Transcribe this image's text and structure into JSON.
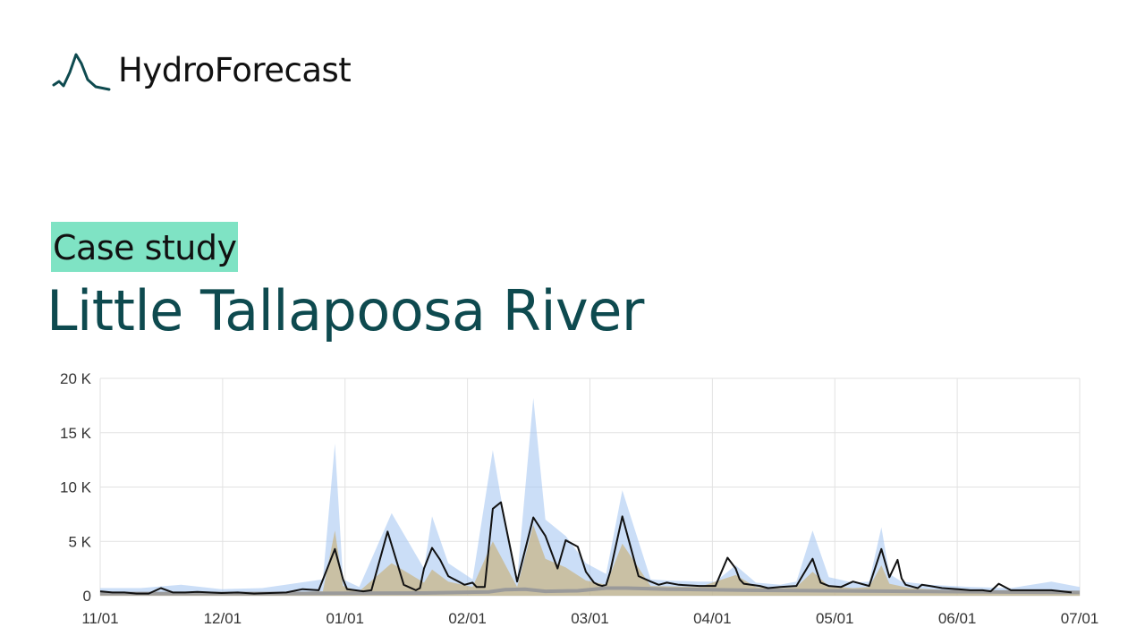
{
  "brand": {
    "name": "HydroForecast",
    "logo_icon": "hydrograph-peak-icon",
    "logo_color": "#0e4a4f"
  },
  "badge": {
    "label": "Case study",
    "color": "#7fe3c4"
  },
  "title": "Little Tallapoosa River",
  "colors": {
    "observed": "#111111",
    "band_outer": "#a9c8f2",
    "band_mid": "#c9a860",
    "baseline": "#9a9a9a",
    "grid": "#e2e2e2"
  },
  "chart_data": {
    "type": "line",
    "title": "",
    "xlabel": "",
    "ylabel": "",
    "x_ticks": [
      "11/01",
      "12/01",
      "01/01",
      "02/01",
      "03/01",
      "04/01",
      "05/01",
      "06/01",
      "07/01"
    ],
    "y_ticks": [
      "20 K",
      "15 K",
      "10 K",
      "5 K",
      "0"
    ],
    "xlim": [
      0,
      242
    ],
    "ylim": [
      0,
      20000
    ],
    "grid": true,
    "legend": "none",
    "series": [
      {
        "role": "observed",
        "x": [
          0,
          3,
          6,
          9,
          12,
          15,
          18,
          21,
          24,
          27,
          30,
          34,
          38,
          42,
          46,
          50,
          54,
          58,
          60,
          61,
          63,
          65,
          67,
          71,
          75,
          78,
          79,
          80,
          82,
          84,
          86,
          90,
          92,
          93,
          95,
          97,
          99,
          103,
          107,
          110,
          113,
          115,
          118,
          120,
          122,
          123,
          124,
          125,
          126,
          129,
          133,
          136,
          138,
          140,
          143,
          148,
          152,
          155,
          157,
          158,
          159,
          163,
          165,
          168,
          172,
          176,
          178,
          180,
          183,
          186,
          190,
          193,
          195,
          197,
          198,
          199,
          200,
          201,
          202,
          203,
          205,
          208,
          212,
          215,
          218,
          220,
          222,
          225,
          230,
          235,
          240
        ],
        "y": [
          400,
          300,
          300,
          200,
          200,
          700,
          300,
          300,
          350,
          300,
          250,
          300,
          200,
          250,
          300,
          600,
          500,
          4300,
          1500,
          600,
          500,
          400,
          500,
          5900,
          1000,
          500,
          700,
          2500,
          4400,
          3300,
          1800,
          1000,
          1200,
          800,
          800,
          8000,
          8600,
          1300,
          7200,
          5500,
          2500,
          5100,
          4500,
          2200,
          1200,
          1000,
          900,
          1000,
          2200,
          7300,
          1800,
          1300,
          1000,
          1200,
          1000,
          900,
          900,
          3500,
          2500,
          1500,
          1100,
          900,
          700,
          800,
          900,
          3400,
          1200,
          900,
          800,
          1300,
          900,
          4300,
          1700,
          3300,
          1600,
          1000,
          900,
          800,
          700,
          1000,
          900,
          700,
          600,
          500,
          500,
          400,
          1100,
          500,
          500,
          500,
          300
        ]
      },
      {
        "role": "forecast-upper",
        "x": [
          0,
          10,
          20,
          30,
          40,
          55,
          58,
          60,
          64,
          72,
          80,
          82,
          86,
          92,
          97,
          99,
          103,
          107,
          110,
          115,
          120,
          125,
          129,
          136,
          140,
          148,
          152,
          157,
          162,
          168,
          172,
          176,
          180,
          186,
          190,
          193,
          195,
          198,
          205,
          215,
          225,
          235,
          242
        ],
        "y": [
          700,
          700,
          1000,
          600,
          700,
          1500,
          14000,
          1500,
          800,
          7600,
          2500,
          7300,
          3000,
          1500,
          13400,
          9000,
          1500,
          18200,
          7000,
          5500,
          3000,
          2000,
          9700,
          1500,
          1400,
          1300,
          1300,
          2800,
          1200,
          1000,
          1300,
          6000,
          1700,
          1200,
          1300,
          6300,
          2000,
          1300,
          1000,
          800,
          700,
          1300,
          800
        ]
      },
      {
        "role": "forecast-median",
        "x": [
          0,
          20,
          40,
          55,
          58,
          60,
          64,
          72,
          80,
          82,
          86,
          92,
          97,
          99,
          103,
          107,
          110,
          115,
          120,
          125,
          129,
          136,
          148,
          157,
          162,
          168,
          172,
          176,
          180,
          186,
          190,
          193,
          195,
          200,
          215,
          242
        ],
        "y": [
          300,
          300,
          300,
          400,
          6000,
          900,
          400,
          3000,
          1200,
          2400,
          1300,
          800,
          5000,
          3600,
          800,
          6500,
          3400,
          2600,
          1400,
          1000,
          4800,
          900,
          800,
          1900,
          800,
          700,
          800,
          2200,
          900,
          700,
          800,
          2800,
          1100,
          700,
          400,
          300
        ]
      },
      {
        "role": "baseline",
        "x": [
          0,
          40,
          80,
          96,
          100,
          105,
          110,
          118,
          125,
          130,
          140,
          160,
          180,
          200,
          220,
          242
        ],
        "y": [
          200,
          200,
          250,
          350,
          550,
          600,
          400,
          450,
          700,
          700,
          600,
          500,
          450,
          400,
          350,
          300
        ]
      }
    ]
  }
}
